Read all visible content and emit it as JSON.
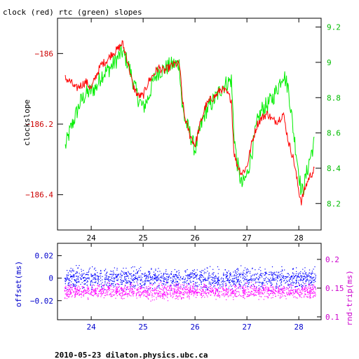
{
  "figure": {
    "title": "clock (red) rtc (green) slopes",
    "footer": "2010-05-23 dilaton.physics.ubc.ca"
  },
  "colors": {
    "clock": "#ff0000",
    "rtc": "#00ee00",
    "offset": "#0000ff",
    "rndtrip": "#ff00ff",
    "left_axis_top": "#cc0000",
    "left_axis_bottom": "#0000cc",
    "right_axis_top": "#00bb00",
    "right_axis_bottom": "#cc00cc",
    "frame": "#000000"
  },
  "chart_data": [
    {
      "type": "line",
      "ylabel": "clockslope",
      "y2label": "",
      "xlim": [
        23.35,
        28.43
      ],
      "ylim": [
        -186.5,
        -185.9
      ],
      "y2lim": [
        8.05,
        9.25
      ],
      "xticks": [
        24,
        25,
        26,
        27,
        28
      ],
      "yticks": [
        -186,
        -186.2,
        -186.4
      ],
      "ytick_labels": [
        "−186",
        "−186.2",
        "−186.4"
      ],
      "y2ticks": [
        8.2,
        8.4,
        8.6,
        8.8,
        9,
        9.2
      ],
      "y2tick_labels": [
        "8.2",
        "8.4",
        "8.6",
        "8.8",
        "9",
        "9.2"
      ],
      "series": [
        {
          "name": "clock",
          "axis": "left",
          "x": [
            23.5,
            23.6,
            23.7,
            23.8,
            23.9,
            24.0,
            24.1,
            24.2,
            24.3,
            24.4,
            24.5,
            24.6,
            24.7,
            24.8,
            24.9,
            25.0,
            25.1,
            25.2,
            25.3,
            25.4,
            25.5,
            25.6,
            25.7,
            25.75,
            25.8,
            25.9,
            26.0,
            26.1,
            26.2,
            26.3,
            26.4,
            26.5,
            26.6,
            26.7,
            26.75,
            26.8,
            26.9,
            27.0,
            27.1,
            27.2,
            27.3,
            27.4,
            27.5,
            27.6,
            27.7,
            27.8,
            27.9,
            28.0,
            28.05,
            28.1,
            28.2,
            28.3
          ],
          "y": [
            -186.07,
            -186.08,
            -186.1,
            -186.09,
            -186.08,
            -186.1,
            -186.06,
            -186.03,
            -186.02,
            -186.0,
            -185.99,
            -185.97,
            -186.02,
            -186.09,
            -186.12,
            -186.12,
            -186.08,
            -186.06,
            -186.04,
            -186.05,
            -186.04,
            -186.03,
            -186.03,
            -186.12,
            -186.18,
            -186.23,
            -186.26,
            -186.2,
            -186.15,
            -186.13,
            -186.12,
            -186.1,
            -186.11,
            -186.13,
            -186.28,
            -186.31,
            -186.34,
            -186.32,
            -186.25,
            -186.2,
            -186.18,
            -186.17,
            -186.19,
            -186.19,
            -186.17,
            -186.25,
            -186.3,
            -186.39,
            -186.42,
            -186.39,
            -186.35,
            -186.33
          ]
        },
        {
          "name": "rtc",
          "axis": "right",
          "x": [
            23.5,
            23.6,
            23.7,
            23.8,
            23.9,
            24.0,
            24.1,
            24.2,
            24.3,
            24.4,
            24.5,
            24.6,
            24.7,
            24.8,
            24.9,
            25.0,
            25.1,
            25.2,
            25.3,
            25.4,
            25.5,
            25.6,
            25.7,
            25.75,
            25.8,
            25.9,
            26.0,
            26.1,
            26.2,
            26.3,
            26.4,
            26.5,
            26.6,
            26.7,
            26.75,
            26.8,
            26.9,
            27.0,
            27.1,
            27.2,
            27.3,
            27.4,
            27.5,
            27.6,
            27.7,
            27.8,
            27.9,
            28.0,
            28.05,
            28.1,
            28.2,
            28.3
          ],
          "y": [
            8.52,
            8.62,
            8.7,
            8.78,
            8.82,
            8.84,
            8.86,
            8.93,
            8.95,
            8.98,
            9.02,
            9.06,
            9.0,
            8.9,
            8.8,
            8.74,
            8.8,
            8.9,
            8.95,
            8.96,
            8.98,
            8.99,
            8.99,
            8.76,
            8.68,
            8.6,
            8.5,
            8.62,
            8.72,
            8.76,
            8.8,
            8.85,
            8.88,
            8.9,
            8.6,
            8.45,
            8.3,
            8.36,
            8.5,
            8.66,
            8.74,
            8.76,
            8.8,
            8.86,
            8.94,
            8.85,
            8.6,
            8.38,
            8.26,
            8.3,
            8.44,
            8.55
          ]
        }
      ]
    },
    {
      "type": "scatter",
      "ylabel": "offset(ms)",
      "y2label": "rnd-trip(ms)",
      "xlim": [
        23.35,
        28.43
      ],
      "ylim": [
        -0.037,
        0.031
      ],
      "y2lim": [
        0.095,
        0.228
      ],
      "xticks": [
        24,
        25,
        26,
        27,
        28
      ],
      "yticks": [
        0.02,
        0,
        -0.02
      ],
      "ytick_labels": [
        "0.02",
        "0",
        "−0.02"
      ],
      "y2ticks": [
        0.1,
        0.15,
        0.2
      ],
      "y2tick_labels": [
        "0.1",
        "0.15",
        "0.2"
      ],
      "series": [
        {
          "name": "offset",
          "axis": "left",
          "x_range": [
            23.48,
            28.32
          ],
          "y_center": 0.0,
          "y_spread": 0.013
        },
        {
          "name": "rnd-trip",
          "axis": "right",
          "x_range": [
            23.48,
            28.32
          ],
          "y_center": 0.145,
          "y_spread": 0.018
        }
      ]
    }
  ]
}
